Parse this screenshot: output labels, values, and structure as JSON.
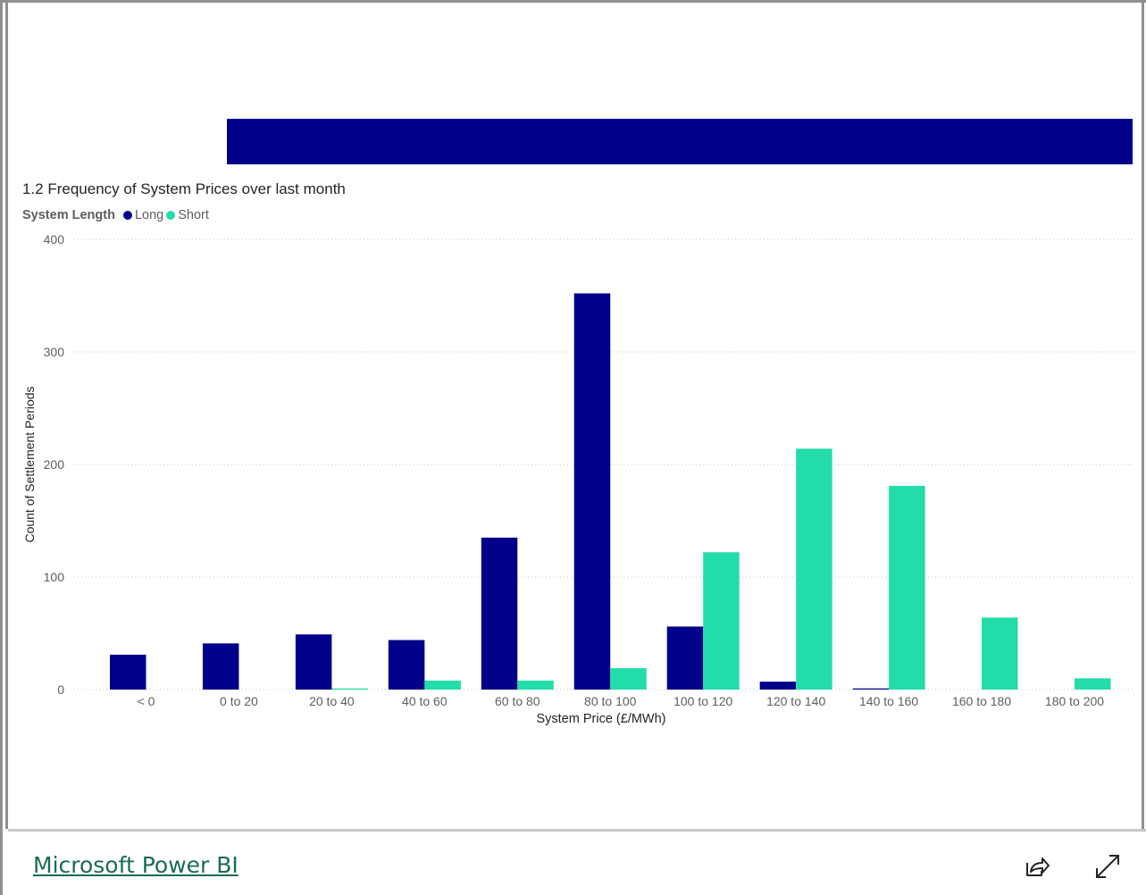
{
  "banner": {
    "color": "#00008b"
  },
  "footer": {
    "link_label": "Microsoft Power BI",
    "share_icon": "share-icon",
    "expand_icon": "expand-icon"
  },
  "chart_data": {
    "type": "bar",
    "title": "1.2 Frequency of System Prices over last month",
    "legend_title": "System Length",
    "legend_position": "top-left",
    "xlabel": "System Price (£/MWh)",
    "ylabel": "Count of Settlement Periods",
    "ylim": [
      0,
      400
    ],
    "yticks": [
      0,
      100,
      200,
      300,
      400
    ],
    "grid": true,
    "categories": [
      "< 0",
      "0 to 20",
      "20 to 40",
      "40 to 60",
      "60 to 80",
      "80 to 100",
      "100 to 120",
      "120 to 140",
      "140 to 160",
      "160 to 180",
      "180 to 200"
    ],
    "series": [
      {
        "name": "Long",
        "color": "#00008b",
        "values": [
          31,
          41,
          49,
          44,
          135,
          352,
          56,
          7,
          1,
          0,
          0
        ]
      },
      {
        "name": "Short",
        "color": "#22ddaa",
        "values": [
          0,
          0,
          1,
          8,
          8,
          19,
          122,
          214,
          181,
          64,
          10
        ]
      }
    ]
  }
}
